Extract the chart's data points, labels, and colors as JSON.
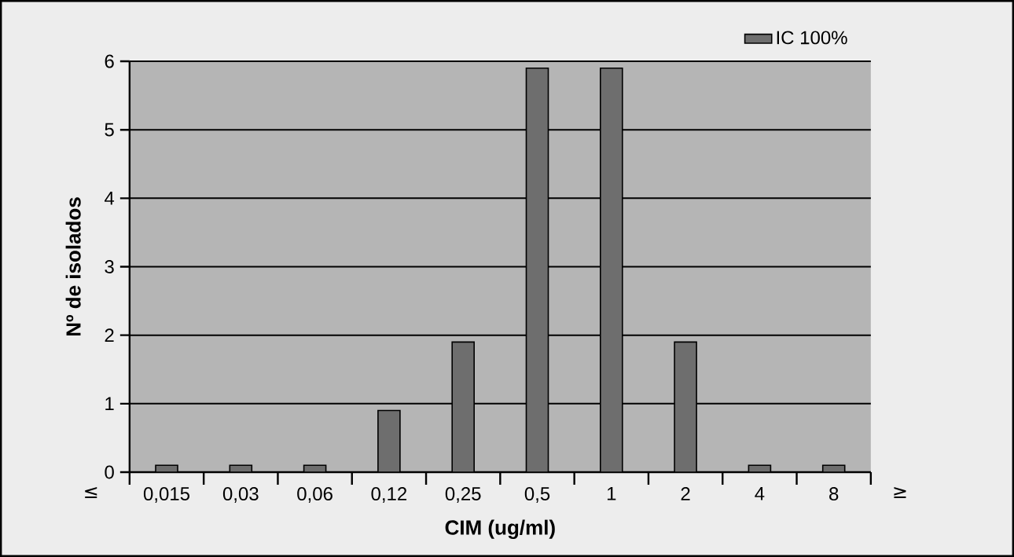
{
  "chart_data": {
    "type": "bar",
    "xlabel": "CIM (ug/ml)",
    "ylabel": "Nº de isolados",
    "categories": [
      "0,015",
      "0,03",
      "0,06",
      "0,12",
      "0,25",
      "0,5",
      "1",
      "2",
      "4",
      "8"
    ],
    "series": [
      {
        "name": "IC 100%",
        "color": "#6e6e6e",
        "values": [
          0.1,
          0.1,
          0.1,
          0.9,
          1.9,
          5.9,
          5.9,
          1.9,
          0.1,
          0.1
        ]
      }
    ],
    "ylim": [
      0,
      6
    ],
    "yticks": [
      0,
      1,
      2,
      3,
      4,
      5,
      6
    ],
    "grid": "y",
    "legend": "top right",
    "annotations": [
      "≤",
      "≥"
    ]
  }
}
